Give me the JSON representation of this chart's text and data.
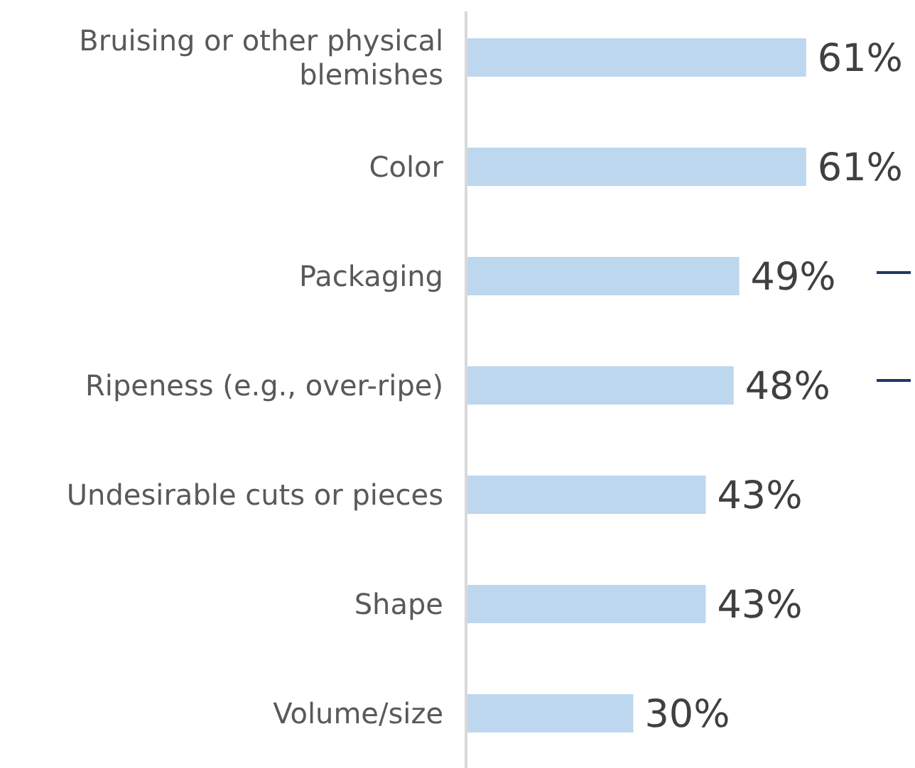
{
  "chart_data": {
    "type": "bar",
    "orientation": "horizontal",
    "categories": [
      "Bruising or other physical blemishes",
      "Color",
      "Packaging",
      "Ripeness (e.g., over-ripe)",
      "Undesirable cuts or pieces",
      "Shape",
      "Volume/size"
    ],
    "values": [
      61,
      61,
      49,
      48,
      43,
      43,
      30
    ],
    "value_labels": [
      "61%",
      "61%",
      "49%",
      "48%",
      "43%",
      "43%",
      "30%"
    ],
    "color": "#bdd7ee",
    "tick_labels": "y"
  }
}
